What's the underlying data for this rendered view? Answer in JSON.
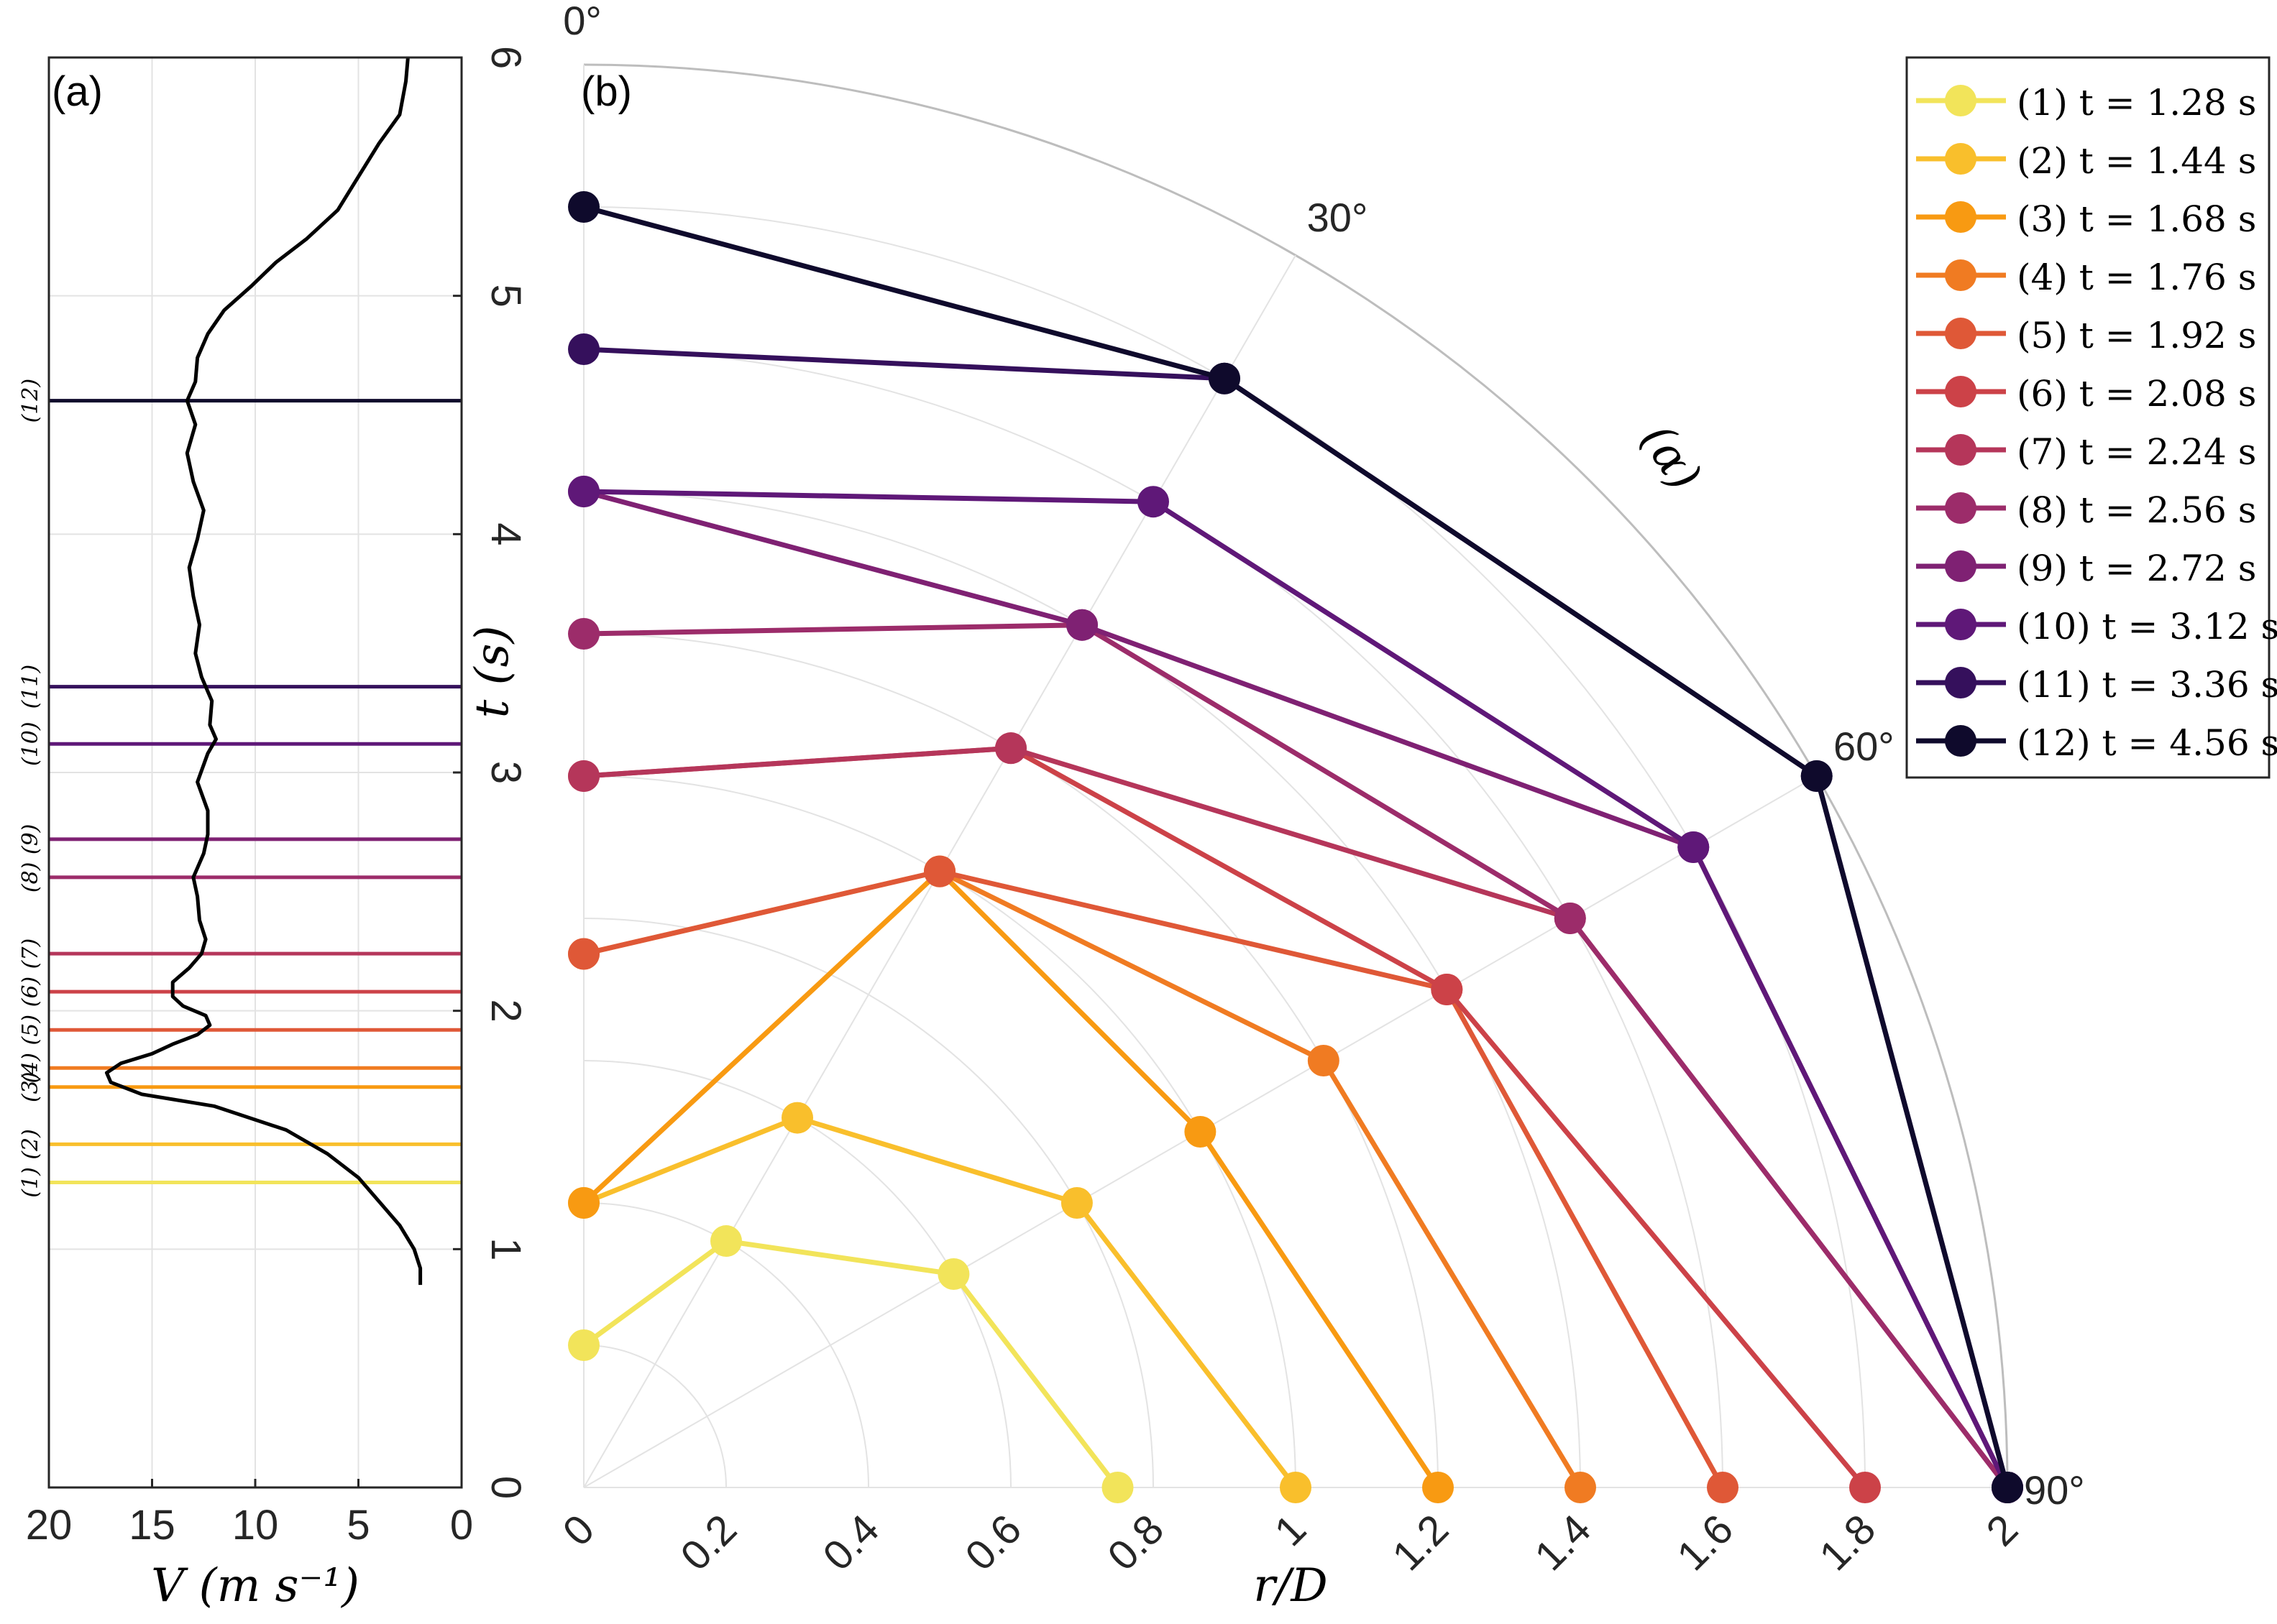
{
  "panel_a_label": "(a)",
  "panel_b_label": "(b)",
  "alpha_label": "(α)",
  "chart_data": [
    {
      "type": "line",
      "panel": "(a)",
      "xlabel": "V (m s⁻¹)",
      "ylabel": "t (s)",
      "xlim": [
        20,
        0
      ],
      "ylim": [
        0,
        6
      ],
      "x_direction": "reversed",
      "x_ticks": [
        "20",
        "15",
        "10",
        "5",
        "0"
      ],
      "y_ticks": [
        "0",
        "1",
        "2",
        "3",
        "4",
        "5",
        "6"
      ],
      "y_axis_side": "right",
      "grid": true,
      "series": [
        {
          "name": "V",
          "color": "#000000",
          "points": [
            [
              2,
              0.85
            ],
            [
              2,
              0.92
            ],
            [
              2.3,
              1.0
            ],
            [
              3,
              1.1
            ],
            [
              4,
              1.2
            ],
            [
              5,
              1.3
            ],
            [
              6.5,
              1.4
            ],
            [
              8.5,
              1.5
            ],
            [
              12,
              1.6
            ],
            [
              15.5,
              1.65
            ],
            [
              17,
              1.7
            ],
            [
              17.2,
              1.74
            ],
            [
              16.5,
              1.78
            ],
            [
              15,
              1.82
            ],
            [
              14,
              1.86
            ],
            [
              12.8,
              1.9
            ],
            [
              12.2,
              1.94
            ],
            [
              12.4,
              1.98
            ],
            [
              13.5,
              2.02
            ],
            [
              14,
              2.06
            ],
            [
              14,
              2.12
            ],
            [
              13.2,
              2.18
            ],
            [
              12.6,
              2.24
            ],
            [
              12.4,
              2.3
            ],
            [
              12.7,
              2.38
            ],
            [
              12.8,
              2.48
            ],
            [
              13,
              2.56
            ],
            [
              12.5,
              2.66
            ],
            [
              12.3,
              2.74
            ],
            [
              12.3,
              2.84
            ],
            [
              12.8,
              2.96
            ],
            [
              12.3,
              3.08
            ],
            [
              11.9,
              3.14
            ],
            [
              12.2,
              3.2
            ],
            [
              12.1,
              3.3
            ],
            [
              12.6,
              3.4
            ],
            [
              12.9,
              3.5
            ],
            [
              12.7,
              3.62
            ],
            [
              13,
              3.74
            ],
            [
              13.2,
              3.86
            ],
            [
              12.8,
              3.98
            ],
            [
              12.5,
              4.1
            ],
            [
              13,
              4.22
            ],
            [
              13.3,
              4.34
            ],
            [
              12.9,
              4.46
            ],
            [
              13.3,
              4.56
            ],
            [
              12.9,
              4.64
            ],
            [
              12.8,
              4.74
            ],
            [
              12.3,
              4.84
            ],
            [
              11.5,
              4.94
            ],
            [
              10.2,
              5.04
            ],
            [
              9,
              5.14
            ],
            [
              7.5,
              5.24
            ],
            [
              6,
              5.36
            ],
            [
              5,
              5.5
            ],
            [
              4,
              5.64
            ],
            [
              3,
              5.76
            ],
            [
              2.7,
              5.9
            ],
            [
              2.6,
              6.0
            ]
          ]
        }
      ],
      "time_markers": [
        {
          "id": "(1)",
          "t": 1.28,
          "color": "#f2e45a"
        },
        {
          "id": "(2)",
          "t": 1.44,
          "color": "#f9bf2c"
        },
        {
          "id": "(3)",
          "t": 1.68,
          "color": "#f89a12"
        },
        {
          "id": "(4)",
          "t": 1.76,
          "color": "#f07b22"
        },
        {
          "id": "(5)",
          "t": 1.92,
          "color": "#df5837"
        },
        {
          "id": "(6)",
          "t": 2.08,
          "color": "#cc4248"
        },
        {
          "id": "(7)",
          "t": 2.24,
          "color": "#b5365a"
        },
        {
          "id": "(8)",
          "t": 2.56,
          "color": "#9c2c6a"
        },
        {
          "id": "(9)",
          "t": 2.72,
          "color": "#7f2173"
        },
        {
          "id": "(10)",
          "t": 3.12,
          "color": "#5f1878"
        },
        {
          "id": "(11)",
          "t": 3.36,
          "color": "#35105c"
        },
        {
          "id": "(12)",
          "t": 4.56,
          "color": "#0f0a2c"
        }
      ]
    },
    {
      "type": "line",
      "panel": "(b)",
      "coordinate_system": "polar",
      "xlabel": "r/D",
      "r_ticks": [
        "0",
        "0.2",
        "0.4",
        "0.6",
        "0.8",
        "1",
        "1.2",
        "1.4",
        "1.6",
        "1.8",
        "2"
      ],
      "angle_labels": [
        "0°",
        "30°",
        "60°",
        "90°"
      ],
      "angle_units": "degrees",
      "r_range": [
        0,
        2
      ],
      "angle_range": [
        0,
        90
      ],
      "grid": true,
      "legend_location": "top-right",
      "series": [
        {
          "id": "(1)",
          "label": "t = 1.28 s",
          "color": "#f2e45a",
          "points": [
            [
              0,
              0.2
            ],
            [
              30,
              0.4
            ],
            [
              60,
              0.6
            ],
            [
              90,
              0.75
            ]
          ]
        },
        {
          "id": "(2)",
          "label": "t = 1.44 s",
          "color": "#f9bf2c",
          "points": [
            [
              0,
              0.4
            ],
            [
              30,
              0.6
            ],
            [
              60,
              0.8
            ],
            [
              90,
              1.0
            ]
          ]
        },
        {
          "id": "(3)",
          "label": "t = 1.68 s",
          "color": "#f89a12",
          "points": [
            [
              0,
              0.4
            ],
            [
              30,
              1.0
            ],
            [
              60,
              1.0
            ],
            [
              90,
              1.2
            ]
          ]
        },
        {
          "id": "(4)",
          "label": "t = 1.76 s",
          "color": "#f07b22",
          "points": [
            [
              0,
              0.75
            ],
            [
              30,
              1.0
            ],
            [
              60,
              1.2
            ],
            [
              90,
              1.4
            ]
          ]
        },
        {
          "id": "(5)",
          "label": "t = 1.92 s",
          "color": "#df5837",
          "points": [
            [
              0,
              0.75
            ],
            [
              30,
              1.0
            ],
            [
              60,
              1.4
            ],
            [
              90,
              1.6
            ]
          ]
        },
        {
          "id": "(6)",
          "label": "t = 2.08 s",
          "color": "#cc4248",
          "points": [
            [
              0,
              1.0
            ],
            [
              30,
              1.2
            ],
            [
              60,
              1.4
            ],
            [
              90,
              1.8
            ]
          ]
        },
        {
          "id": "(7)",
          "label": "t = 2.24 s",
          "color": "#b5365a",
          "points": [
            [
              0,
              1.0
            ],
            [
              30,
              1.2
            ],
            [
              60,
              1.6
            ],
            [
              90,
              2.0
            ]
          ]
        },
        {
          "id": "(8)",
          "label": "t = 2.56 s",
          "color": "#9c2c6a",
          "points": [
            [
              0,
              1.2
            ],
            [
              30,
              1.4
            ],
            [
              60,
              1.6
            ],
            [
              90,
              2.0
            ]
          ]
        },
        {
          "id": "(9)",
          "label": "t = 2.72 s",
          "color": "#7f2173",
          "points": [
            [
              0,
              1.4
            ],
            [
              30,
              1.4
            ],
            [
              60,
              1.8
            ],
            [
              90,
              2.0
            ]
          ]
        },
        {
          "id": "(10)",
          "label": "t = 3.12 s",
          "color": "#5f1878",
          "points": [
            [
              0,
              1.4
            ],
            [
              30,
              1.6
            ],
            [
              60,
              1.8
            ],
            [
              90,
              2.0
            ]
          ]
        },
        {
          "id": "(11)",
          "label": "t = 3.36 s",
          "color": "#35105c",
          "points": [
            [
              0,
              1.6
            ],
            [
              30,
              1.8
            ],
            [
              60,
              2.0
            ],
            [
              90,
              2.0
            ]
          ]
        },
        {
          "id": "(12)",
          "label": "t = 4.56 s",
          "color": "#0f0a2c",
          "points": [
            [
              0,
              1.8
            ],
            [
              30,
              1.8
            ],
            [
              60,
              2.0
            ],
            [
              90,
              2.0
            ]
          ]
        }
      ]
    }
  ]
}
